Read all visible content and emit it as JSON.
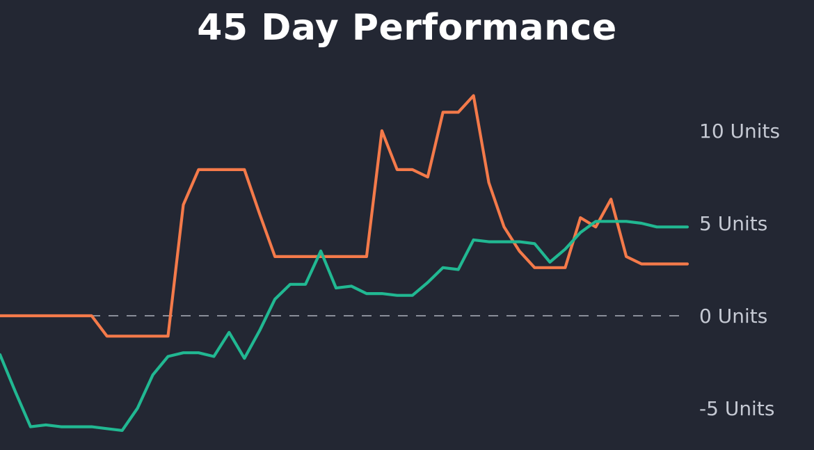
{
  "chart_data": {
    "type": "line",
    "title": "45 Day Performance",
    "xlabel": "",
    "ylabel": "",
    "x": [
      1,
      2,
      3,
      4,
      5,
      6,
      7,
      8,
      9,
      10,
      11,
      12,
      13,
      14,
      15,
      16,
      17,
      18,
      19,
      20,
      21,
      22,
      23,
      24,
      25,
      26,
      27,
      28,
      29,
      30,
      31,
      32,
      33,
      34,
      35,
      36,
      37,
      38,
      39,
      40,
      41,
      42,
      43,
      44,
      45,
      46
    ],
    "yticks": [
      {
        "value": 10,
        "label": "10 Units"
      },
      {
        "value": 5,
        "label": "5 Units"
      },
      {
        "value": 0,
        "label": "0 Units"
      },
      {
        "value": -5,
        "label": "-5 Units"
      }
    ],
    "ylim": [
      -7,
      12.5
    ],
    "zero_line": "dashed",
    "grid": false,
    "legend": "none",
    "series": [
      {
        "color": "#f47a4a",
        "values": [
          0,
          0,
          0,
          0,
          0,
          0,
          0,
          -1.1,
          -1.1,
          -1.1,
          -1.1,
          -1.1,
          6,
          7.9,
          7.9,
          7.9,
          7.9,
          5.5,
          3.2,
          3.2,
          3.2,
          3.2,
          3.2,
          3.2,
          3.2,
          10,
          7.9,
          7.9,
          7.5,
          11,
          11,
          11.9,
          7.2,
          4.8,
          3.5,
          2.6,
          2.6,
          2.6,
          5.3,
          4.8,
          6.3,
          3.2,
          2.8,
          2.8,
          2.8,
          2.8
        ]
      },
      {
        "color": "#21b892",
        "values": [
          -2.1,
          -4.1,
          -6,
          -5.9,
          -6,
          -6,
          -6,
          -6.1,
          -6.2,
          -5,
          -3.2,
          -2.2,
          -2,
          -2,
          -2.2,
          -0.9,
          -2.3,
          -0.8,
          0.9,
          1.7,
          1.7,
          3.5,
          1.5,
          1.6,
          1.2,
          1.2,
          1.1,
          1.1,
          1.8,
          2.6,
          2.5,
          4.1,
          4,
          4,
          4,
          3.9,
          2.9,
          3.6,
          4.5,
          5.1,
          5.1,
          5.1,
          5,
          4.8,
          4.8,
          4.8
        ]
      }
    ]
  }
}
